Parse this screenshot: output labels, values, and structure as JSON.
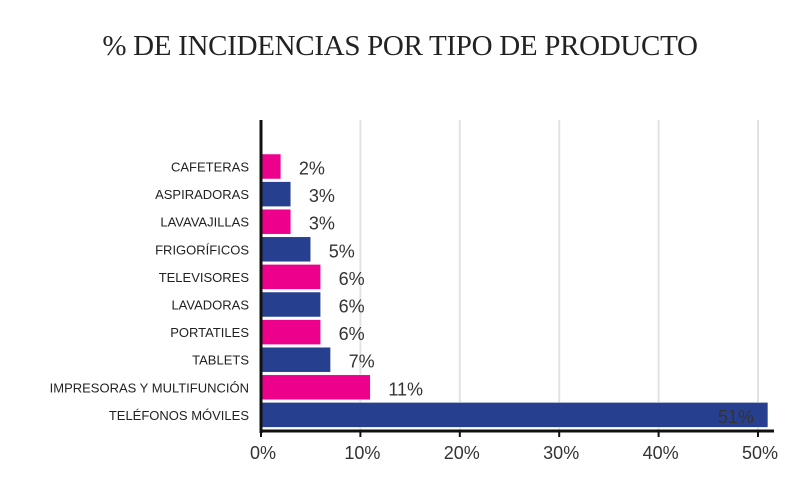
{
  "chart_data": {
    "type": "bar",
    "orientation": "horizontal",
    "title": "% DE INCIDENCIAS POR TIPO DE PRODUCTO",
    "xlabel": "",
    "ylabel": "",
    "categories": [
      "CAFETERAS",
      "ASPIRADORAS",
      "LAVAVAJILLAS",
      "FRIGORÍFICOS",
      "TELEVISORES",
      "LAVADORAS",
      "PORTATILES",
      "TABLETS",
      "IMPRESORAS Y MULTIFUNCIÓN",
      "TELÉFONOS MÓVILES"
    ],
    "values": [
      2,
      3,
      3,
      5,
      6,
      6,
      6,
      7,
      11,
      51
    ],
    "data_labels": [
      "2%",
      "3%",
      "3%",
      "5%",
      "6%",
      "6%",
      "6%",
      "7%",
      "11%",
      "51%"
    ],
    "bar_colors": [
      "#ec008c",
      "#26408f",
      "#ec008c",
      "#26408f",
      "#ec008c",
      "#26408f",
      "#ec008c",
      "#26408f",
      "#ec008c",
      "#26408f"
    ],
    "xlim": [
      0,
      50
    ],
    "x_ticks": [
      0,
      10,
      20,
      30,
      40,
      50
    ],
    "x_tick_labels": [
      "0%",
      "10%",
      "20%",
      "30%",
      "40%",
      "50%"
    ],
    "grid": "vertical",
    "legend": "none"
  }
}
